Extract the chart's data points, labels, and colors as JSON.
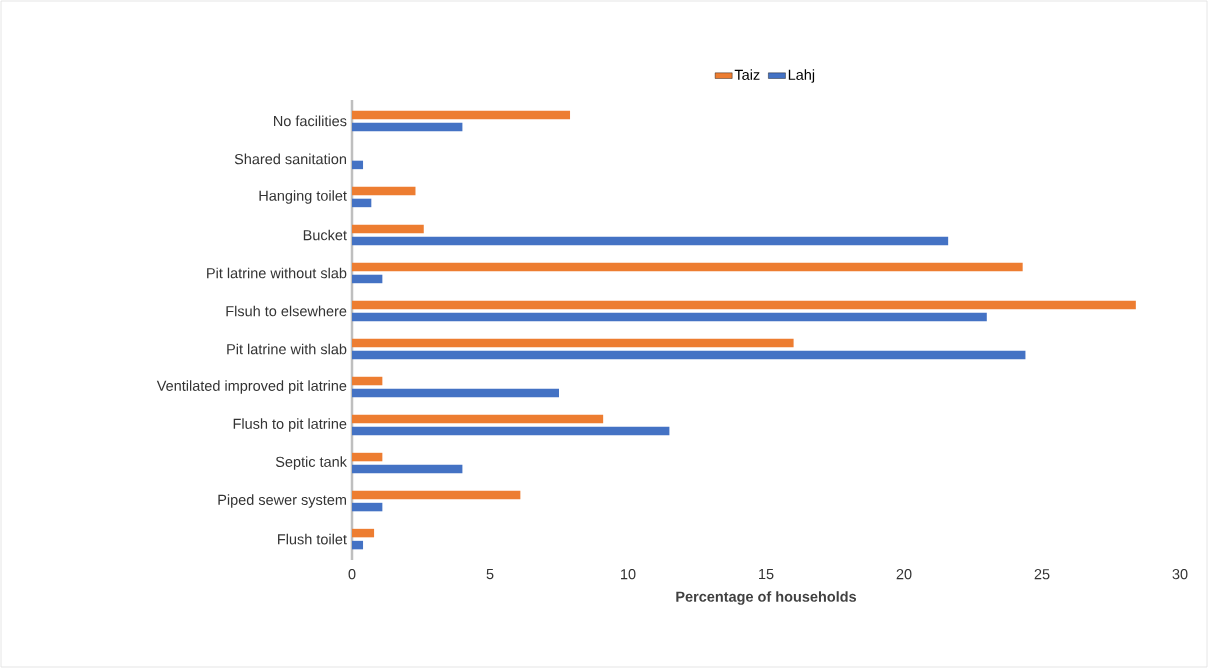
{
  "chart_data": {
    "type": "bar",
    "orientation": "horizontal",
    "xlabel": "Percentage of households",
    "categories": [
      "No facilities",
      "Shared sanitation",
      "Hanging toilet",
      "Bucket",
      "Pit latrine without slab",
      "Flsuh to elsewhere",
      "Pit latrine with slab",
      "Ventilated improved pit latrine",
      "Flush to pit latrine",
      "Septic tank",
      "Piped sewer system",
      "Flush toilet"
    ],
    "series": [
      {
        "name": "Taiz",
        "color": "#ed7d31",
        "values": [
          7.9,
          0,
          2.3,
          2.6,
          24.3,
          28.4,
          16.0,
          1.1,
          9.1,
          1.1,
          6.1,
          0.8
        ]
      },
      {
        "name": "Lahj",
        "color": "#4472c4",
        "values": [
          4.0,
          0.4,
          0.7,
          21.6,
          1.1,
          23.0,
          24.4,
          7.5,
          11.5,
          4.0,
          1.1,
          0.4
        ]
      }
    ],
    "xlim": [
      0,
      30
    ],
    "xticks": [
      0,
      5,
      10,
      15,
      20,
      25,
      30
    ],
    "grid": false,
    "legend": "top"
  }
}
